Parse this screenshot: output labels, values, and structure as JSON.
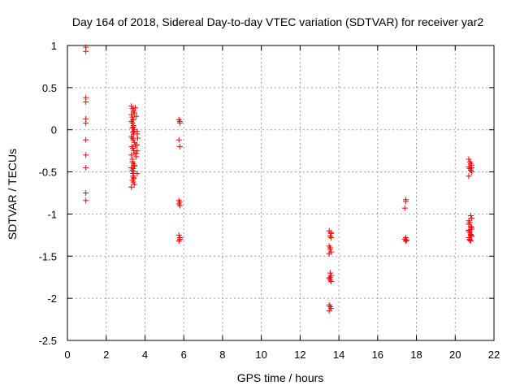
{
  "chart_data": {
    "type": "scatter",
    "title": "Day 164 of 2018, Sidereal Day-to-day VTEC variation (SDTVAR) for receiver yar2",
    "xlabel": "GPS time / hours",
    "ylabel": "SDTVAR / TECUs",
    "xlim": [
      0,
      22
    ],
    "ylim": [
      -2.5,
      1
    ],
    "xticks": [
      0,
      2,
      4,
      6,
      8,
      10,
      12,
      14,
      16,
      18,
      20,
      22
    ],
    "yticks": [
      -2.5,
      -2,
      -1.5,
      -1,
      -0.5,
      0,
      0.5,
      1
    ],
    "xtick_labels": [
      "0",
      "2",
      "4",
      "6",
      "8",
      "10",
      "12",
      "14",
      "16",
      "18",
      "20",
      "22"
    ],
    "ytick_labels": [
      "-2.5",
      "-2",
      "-1.5",
      "-1",
      "-0.5",
      "0",
      "0.5",
      "1"
    ],
    "grid": true,
    "marker": "+",
    "marker_color": "#ff0000",
    "series": [
      {
        "name": "SDTVAR",
        "x": [
          0.95,
          0.95,
          0.95,
          0.95,
          0.95,
          0.95,
          0.95,
          0.95,
          0.95,
          0.95,
          0.95,
          3.3,
          3.35,
          3.4,
          3.45,
          3.3,
          3.35,
          3.4,
          3.5,
          3.3,
          3.4,
          3.35,
          3.45,
          3.38,
          3.42,
          3.3,
          3.35,
          3.4,
          3.45,
          3.5,
          3.32,
          3.38,
          3.42,
          3.48,
          3.3,
          3.35,
          3.4,
          3.45,
          3.55,
          3.6,
          3.62,
          3.58,
          3.6,
          3.55,
          3.6,
          3.3,
          3.35,
          3.4,
          3.45,
          3.38,
          3.42,
          3.35,
          3.4,
          3.45,
          3.3,
          3.35,
          3.4,
          3.42,
          3.38,
          3.35,
          3.4,
          3.38,
          3.42,
          3.6,
          3.55,
          5.75,
          5.8,
          5.8,
          5.75,
          5.8,
          5.75,
          5.8,
          5.75,
          5.8,
          5.75,
          5.8,
          5.75,
          5.8,
          13.5,
          13.6,
          13.55,
          13.6,
          13.5,
          13.55,
          13.6,
          13.5,
          13.55,
          13.6,
          13.5,
          13.55,
          13.6,
          13.5,
          13.55,
          13.6,
          13.5,
          13.55,
          13.6,
          13.55,
          17.45,
          17.45,
          17.4,
          17.45,
          17.4,
          17.5,
          17.45,
          20.7,
          20.75,
          20.8,
          20.85,
          20.7,
          20.75,
          20.8,
          20.85,
          20.7,
          20.8,
          20.85,
          20.75,
          20.7,
          20.8,
          20.85,
          20.7,
          20.75,
          20.8,
          20.85,
          20.7,
          20.75,
          20.8,
          20.85,
          20.7,
          20.8,
          20.85,
          20.75,
          20.7
        ],
        "y": [
          0.98,
          0.93,
          0.38,
          0.33,
          0.13,
          0.08,
          -0.12,
          -0.3,
          -0.45,
          -0.75,
          -0.84,
          0.28,
          0.25,
          0.22,
          0.2,
          0.18,
          0.15,
          0.12,
          0.26,
          0.1,
          0.05,
          0.02,
          0.0,
          -0.03,
          -0.05,
          -0.08,
          -0.1,
          -0.12,
          -0.15,
          -0.18,
          -0.2,
          -0.22,
          -0.25,
          -0.28,
          -0.3,
          -0.35,
          -0.4,
          -0.42,
          0.16,
          -0.05,
          -0.1,
          -0.18,
          -0.25,
          -0.32,
          -0.52,
          -0.45,
          -0.48,
          -0.5,
          -0.43,
          -0.55,
          -0.58,
          -0.6,
          -0.62,
          -0.65,
          -0.68,
          0.08,
          0.03,
          -0.02,
          0.12,
          -0.38,
          -0.46,
          -0.52,
          -0.57,
          -0.02,
          -0.28,
          0.12,
          0.1,
          0.08,
          -0.12,
          -0.2,
          -0.84,
          -0.86,
          -0.88,
          -0.9,
          -1.25,
          -1.28,
          -1.32,
          -1.3,
          -1.2,
          -1.23,
          -1.26,
          -1.28,
          -1.38,
          -1.42,
          -1.45,
          -1.47,
          -1.7,
          -1.73,
          -1.76,
          -1.78,
          -1.8,
          -2.08,
          -2.1,
          -2.12,
          -2.15,
          -1.4,
          -1.22,
          -1.75,
          -0.83,
          -0.85,
          -0.93,
          -1.28,
          -1.3,
          -1.31,
          -1.32,
          -0.35,
          -0.38,
          -0.4,
          -0.42,
          -0.44,
          -0.46,
          -0.48,
          -0.5,
          -0.55,
          -1.02,
          -1.05,
          -1.1,
          -1.12,
          -1.15,
          -1.18,
          -1.2,
          -1.22,
          -1.24,
          -1.26,
          -1.28,
          -1.3,
          -1.32,
          -1.16,
          -1.08,
          -1.25,
          -0.45,
          -1.31,
          -1.19
        ]
      }
    ]
  }
}
